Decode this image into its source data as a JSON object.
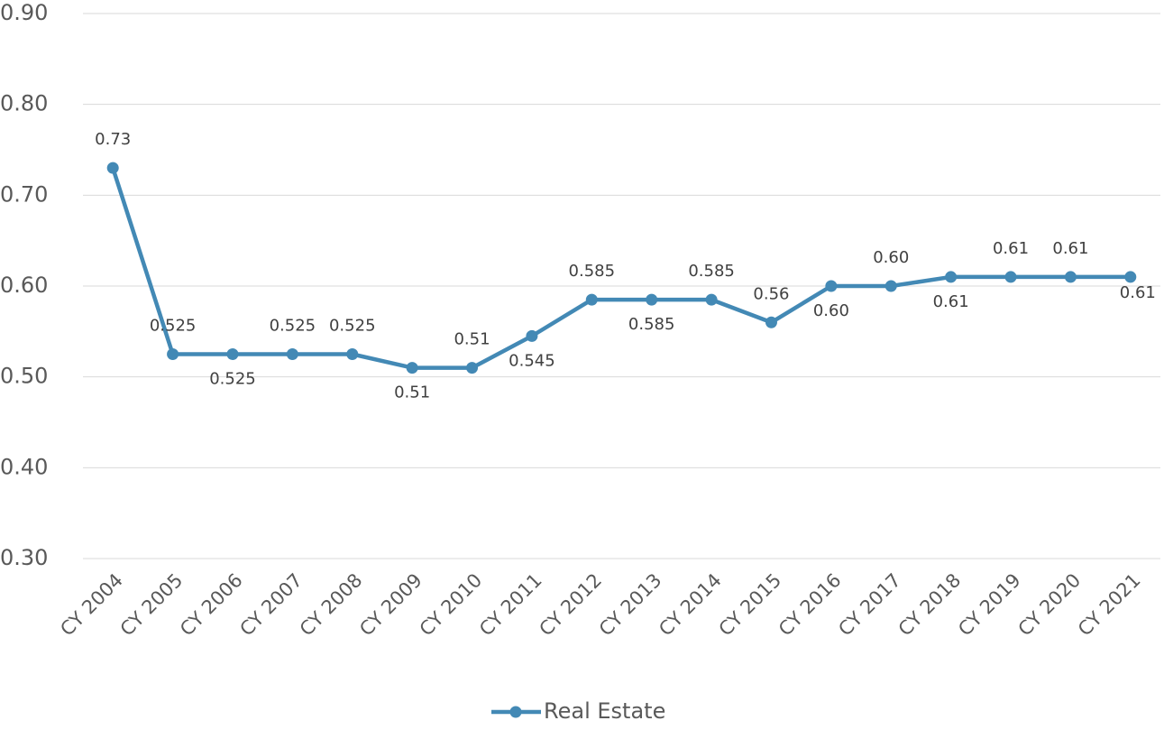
{
  "chart_data": {
    "type": "line",
    "categories": [
      "CY 2004",
      "CY 2005",
      "CY 2006",
      "CY 2007",
      "CY 2008",
      "CY 2009",
      "CY 2010",
      "CY 2011",
      "CY 2012",
      "CY 2013",
      "CY 2014",
      "CY 2015",
      "CY 2016",
      "CY 2017",
      "CY 2018",
      "CY 2019",
      "CY 2020",
      "CY 2021"
    ],
    "series": [
      {
        "name": "Real Estate",
        "color": "#4389b5",
        "values": [
          0.73,
          0.525,
          0.525,
          0.525,
          0.525,
          0.51,
          0.51,
          0.545,
          0.585,
          0.585,
          0.585,
          0.56,
          0.6,
          0.6,
          0.61,
          0.61,
          0.61,
          0.61
        ],
        "value_labels": [
          "0.73",
          "0.525",
          "0.525",
          "0.525",
          "0.525",
          "0.51",
          "0.51",
          "0.545",
          "0.585",
          "0.585",
          "0.585",
          "0.56",
          "0.60",
          "0.60",
          "0.61",
          "0.61",
          "0.61",
          "0.61"
        ]
      }
    ],
    "ylim": [
      0.3,
      0.9
    ],
    "yticks": [
      {
        "value": 0.3,
        "label": "0.30"
      },
      {
        "value": 0.4,
        "label": "0.40"
      },
      {
        "value": 0.5,
        "label": "0.50"
      },
      {
        "value": 0.6,
        "label": "0.60"
      },
      {
        "value": 0.7,
        "label": "0.70"
      },
      {
        "value": 0.8,
        "label": "0.80"
      },
      {
        "value": 0.9,
        "label": "0.90"
      }
    ],
    "grid": true,
    "legend": "bottom"
  }
}
